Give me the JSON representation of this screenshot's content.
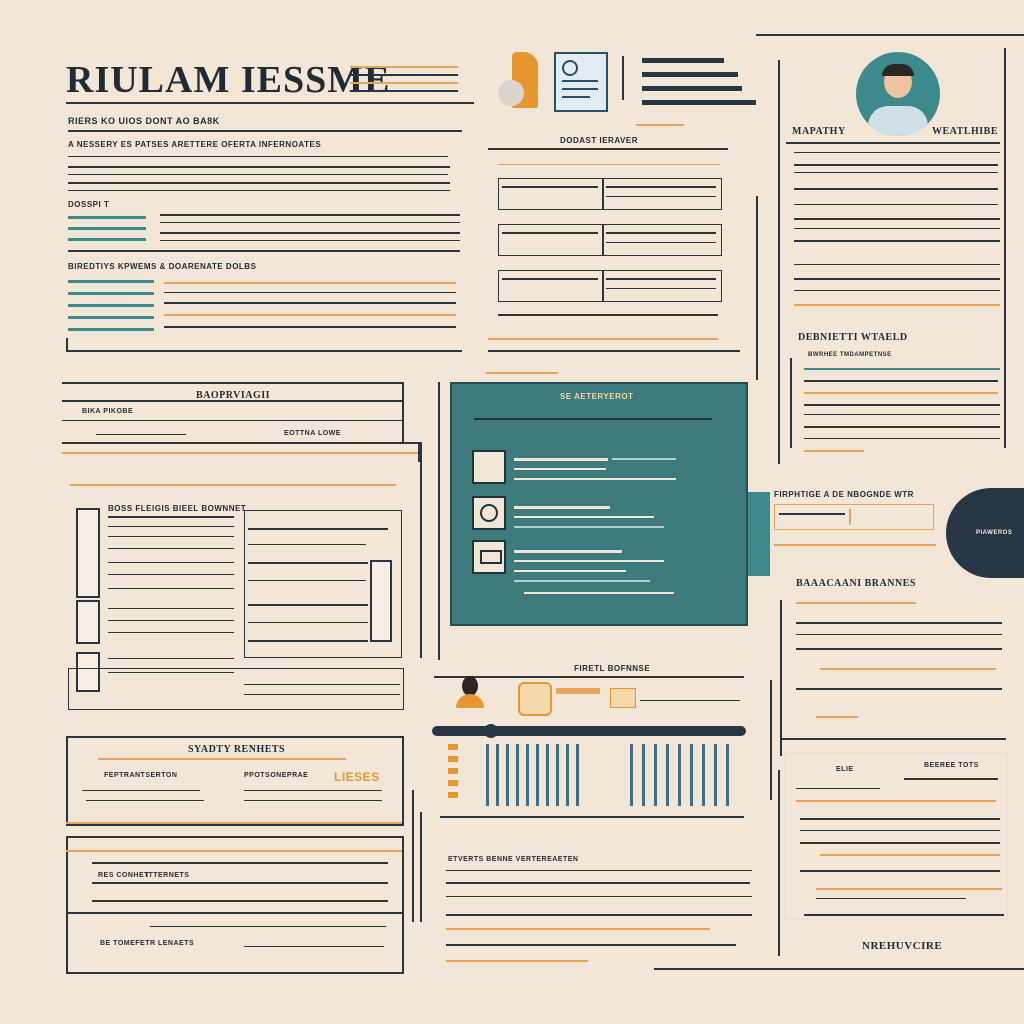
{
  "header": {
    "title": "RIULAM IESSME",
    "subtitle": "RIERS KO UIOS DONT AO BA8K",
    "contact_line": "A NESSERY ES PATSES ARETTERE OFERTA INFERNOATES"
  },
  "left_column": {
    "section_a_label": "DOSSPI T",
    "section_b_label": "BIREDTIYS KPWEMS & DOARENATE DOLBS",
    "section_c_label": "BAOPRVIAGII",
    "section_c_sub": "BIKA PIKOBE",
    "section_c_right": "EOTTNA LOWE",
    "table_heading": "BOSS FLEIGIS BIEEL BOWNNET",
    "skills_heading": "SYADTY RENHETS",
    "skills_left": "FEPTRANTSERTON",
    "skills_right": "PPOTSONEPRAE",
    "skills_tag": "LIESES",
    "exp_left": "RES CONHET",
    "exp_mid": "ITTERNETS",
    "exp_bottom": "BE TOMEFETR LENAETS"
  },
  "center_column": {
    "doc_heading": "DODAST IERAVER",
    "panel_title": "SE AETERYEROT",
    "timeline_heading": "FIRETL BOFNNSE",
    "footer_heading": "ETVERTS BENNE VERTEREAETEN"
  },
  "right_column": {
    "profile_left": "MAPATHY",
    "profile_right": "WEATLHIBE",
    "section_heading": "DEBNIETTI WTAELD",
    "section_sub": "BWRHEE TMDAMPETNSE",
    "badge_heading": "FIRPHTIGE A DE NBOGNDE WTR",
    "badge_label": "PIAWEROS",
    "awards_heading": "BAAACAANI BRANNES",
    "list_left": "ELIE",
    "list_right": "BEEREE TOTS",
    "signature": "NREHUVCIRE"
  },
  "colors": {
    "background": "#f2e6d6",
    "ink": "#1f2b35",
    "teal": "#3c7a7c",
    "orange": "#e8a45a",
    "navy": "#263645"
  },
  "icons": [
    "avatar-icon",
    "document-icon",
    "checklist-icon",
    "user-icon",
    "fingerprint-icon",
    "gear-icon",
    "folder-icon",
    "laptop-icon"
  ]
}
